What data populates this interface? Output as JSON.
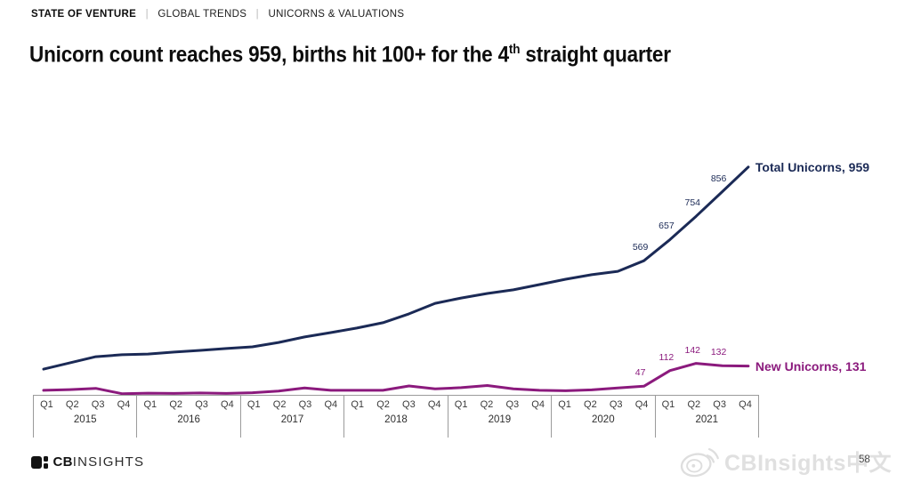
{
  "header": {
    "kicker": {
      "primary": "STATE OF VENTURE",
      "separator": "|",
      "items": [
        "GLOBAL TRENDS",
        "UNICORNS & VALUATIONS"
      ]
    },
    "title": {
      "pre": "Unicorn count reaches 959, births hit 100+ for the 4",
      "sup": "th",
      "post": " straight quarter"
    }
  },
  "chart_data": {
    "type": "line",
    "title": "Unicorn count reaches 959, births hit 100+ for the 4th straight quarter",
    "x_axis": {
      "years": [
        "2015",
        "2016",
        "2017",
        "2018",
        "2019",
        "2020",
        "2021"
      ],
      "quarter_labels": [
        "Q1",
        "Q2",
        "Q3",
        "Q4"
      ]
    },
    "ylim": [
      0,
      1000
    ],
    "grid": false,
    "legend": "end-of-line-labels",
    "series": [
      {
        "name": "Total Unicorns",
        "color": "#1b2a56",
        "end_label": "Total Unicorns, 959",
        "values": [
          118,
          144,
          170,
          178,
          181,
          189,
          196,
          204,
          211,
          229,
          252,
          270,
          289,
          311,
          348,
          392,
          414,
          433,
          448,
          470,
          492,
          511,
          525,
          569,
          657,
          754,
          856,
          959
        ],
        "point_labels": [
          {
            "index": 23,
            "text": "569"
          },
          {
            "index": 24,
            "text": "657"
          },
          {
            "index": 25,
            "text": "754"
          },
          {
            "index": 26,
            "text": "856"
          }
        ]
      },
      {
        "name": "New Unicorns",
        "color": "#8b1a7d",
        "end_label": "New Unicorns, 131",
        "values": [
          30,
          33,
          38,
          16,
          18,
          17,
          19,
          17,
          20,
          27,
          40,
          30,
          30,
          30,
          48,
          36,
          41,
          50,
          36,
          30,
          28,
          32,
          40,
          47,
          112,
          142,
          132,
          131
        ],
        "point_labels": [
          {
            "index": 23,
            "text": "47"
          },
          {
            "index": 24,
            "text": "112"
          },
          {
            "index": 25,
            "text": "142"
          },
          {
            "index": 26,
            "text": "132"
          }
        ]
      }
    ]
  },
  "footer": {
    "logo_cb": "CB",
    "logo_insights": "INSIGHTS",
    "watermark_text": "CBInsights中文",
    "page_number": "58"
  }
}
